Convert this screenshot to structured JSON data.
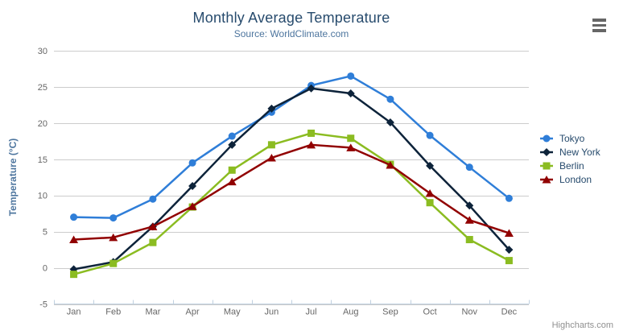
{
  "header": {
    "title": "Monthly Average Temperature",
    "subtitle": "Source: WorldClimate.com"
  },
  "yaxis": {
    "title": "Temperature (°C)",
    "min": -5,
    "max": 30,
    "tick_interval": 5,
    "tick_labels": [
      "-5",
      "0",
      "5",
      "10",
      "15",
      "20",
      "25",
      "30"
    ]
  },
  "xaxis": {
    "categories": [
      "Jan",
      "Feb",
      "Mar",
      "Apr",
      "May",
      "Jun",
      "Jul",
      "Aug",
      "Sep",
      "Oct",
      "Nov",
      "Dec"
    ]
  },
  "credits": {
    "text": "Highcharts.com"
  },
  "export_menu": {
    "icon": "hamburger-menu"
  },
  "style_colors": {
    "grid_line": "#cccccc",
    "axis_line": "#c0d0e0",
    "axis_label": "#666666",
    "title": "#274b6d",
    "subtitle": "#4d759e"
  },
  "chart_data": {
    "type": "line",
    "title": "Monthly Average Temperature",
    "subtitle": "Source: WorldClimate.com",
    "xlabel": "",
    "ylabel": "Temperature (°C)",
    "ylim": [
      -5,
      30
    ],
    "ytick_interval": 5,
    "grid": true,
    "legend_position": "right",
    "categories": [
      "Jan",
      "Feb",
      "Mar",
      "Apr",
      "May",
      "Jun",
      "Jul",
      "Aug",
      "Sep",
      "Oct",
      "Nov",
      "Dec"
    ],
    "series": [
      {
        "name": "Tokyo",
        "color": "#2f7ed8",
        "marker": "circle",
        "values": [
          7.0,
          6.9,
          9.5,
          14.5,
          18.2,
          21.5,
          25.2,
          26.5,
          23.3,
          18.3,
          13.9,
          9.6
        ]
      },
      {
        "name": "New York",
        "color": "#0d233a",
        "marker": "diamond",
        "values": [
          -0.2,
          0.8,
          5.7,
          11.3,
          17.0,
          22.0,
          24.8,
          24.1,
          20.1,
          14.1,
          8.6,
          2.5
        ]
      },
      {
        "name": "Berlin",
        "color": "#8bbc21",
        "marker": "square",
        "values": [
          -0.9,
          0.6,
          3.5,
          8.4,
          13.5,
          17.0,
          18.6,
          17.9,
          14.3,
          9.0,
          3.9,
          1.0
        ]
      },
      {
        "name": "London",
        "color": "#910000",
        "marker": "triangle",
        "values": [
          3.9,
          4.2,
          5.7,
          8.5,
          11.9,
          15.2,
          17.0,
          16.6,
          14.2,
          10.3,
          6.6,
          4.8
        ]
      }
    ]
  }
}
